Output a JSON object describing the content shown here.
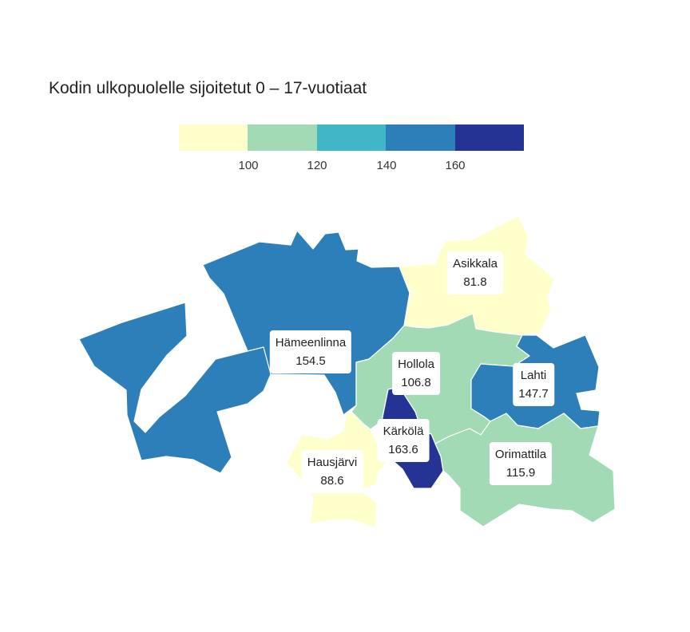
{
  "title": "Kodin ulkopuolelle sijoitetut 0 – 17-vuotiaat",
  "legend": {
    "colors": [
      "#ffffcc",
      "#a1dab4",
      "#41b6c4",
      "#2c7fb8",
      "#253494"
    ],
    "ticks": [
      "100",
      "120",
      "140",
      "160"
    ]
  },
  "municipalities": [
    {
      "id": "hameenlinna",
      "name": "Hämeenlinna",
      "value": "154.5",
      "color": "#2c7fb8"
    },
    {
      "id": "asikkala",
      "name": "Asikkala",
      "value": "81.8",
      "color": "#ffffcc"
    },
    {
      "id": "hollola",
      "name": "Hollola",
      "value": "106.8",
      "color": "#a1dab4"
    },
    {
      "id": "lahti",
      "name": "Lahti",
      "value": "147.7",
      "color": "#2c7fb8"
    },
    {
      "id": "karkola",
      "name": "Kärkölä",
      "value": "163.6",
      "color": "#253494"
    },
    {
      "id": "orimattila",
      "name": "Orimattila",
      "value": "115.9",
      "color": "#a1dab4"
    },
    {
      "id": "hausjarvi",
      "name": "Hausjärvi",
      "value": "88.6",
      "color": "#ffffcc"
    }
  ]
}
